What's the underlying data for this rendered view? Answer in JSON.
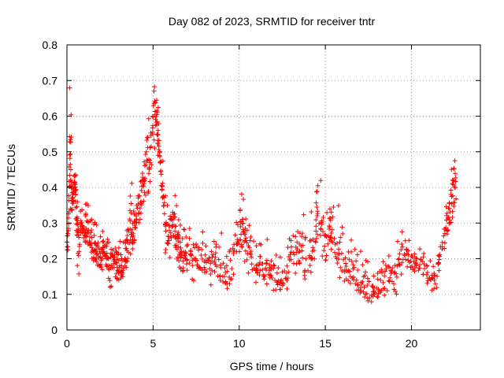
{
  "chart_data": {
    "type": "scatter",
    "title": "Day 082 of 2023, SRMTID for receiver tntr",
    "xlabel": "GPS time / hours",
    "ylabel": "SRMTID / TECUs",
    "xlim": [
      0,
      24
    ],
    "ylim": [
      0,
      0.8
    ],
    "xticks": [
      0,
      5,
      10,
      15,
      20
    ],
    "xtick_labels": [
      "0",
      "5",
      "10",
      "15",
      "20"
    ],
    "yticks": [
      0,
      0.1,
      0.2,
      0.3,
      0.4,
      0.5,
      0.6,
      0.7,
      0.8
    ],
    "ytick_labels": [
      "0",
      "0.1",
      "0.2",
      "0.3",
      "0.4",
      "0.5",
      "0.6",
      "0.7",
      "0.8"
    ],
    "grid": true,
    "marker": "+",
    "color": "#ff0000",
    "series": [
      {
        "name": "SRMTID",
        "x": [
          0.0,
          0.05,
          0.1,
          0.15,
          0.2,
          0.25,
          0.3,
          0.35,
          0.4,
          0.45,
          0.5,
          0.55,
          0.6,
          0.65,
          0.7,
          0.8,
          0.9,
          1.0,
          1.1,
          1.2,
          1.3,
          1.4,
          1.5,
          1.6,
          1.7,
          1.8,
          1.9,
          2.0,
          2.1,
          2.2,
          2.3,
          2.4,
          2.5,
          2.6,
          2.7,
          2.8,
          2.9,
          3.0,
          3.1,
          3.2,
          3.3,
          3.4,
          3.5,
          3.6,
          3.7,
          3.8,
          3.9,
          4.0,
          4.1,
          4.2,
          4.3,
          4.4,
          4.5,
          4.6,
          4.7,
          4.8,
          4.9,
          5.0,
          5.1,
          5.2,
          5.25,
          5.3,
          5.4,
          5.5,
          5.6,
          5.7,
          5.8,
          5.9,
          6.0,
          6.1,
          6.2,
          6.3,
          6.4,
          6.5,
          6.6,
          6.7,
          6.8,
          6.9,
          7.0,
          7.2,
          7.4,
          7.6,
          7.8,
          8.0,
          8.2,
          8.4,
          8.6,
          8.8,
          9.0,
          9.2,
          9.4,
          9.6,
          9.8,
          10.0,
          10.1,
          10.2,
          10.3,
          10.4,
          10.6,
          10.8,
          11.0,
          11.2,
          11.4,
          11.6,
          11.8,
          12.0,
          12.2,
          12.4,
          12.6,
          12.8,
          13.0,
          13.2,
          13.4,
          13.6,
          13.8,
          14.0,
          14.2,
          14.4,
          14.5,
          14.6,
          14.8,
          15.0,
          15.2,
          15.3,
          15.4,
          15.6,
          15.8,
          16.0,
          16.2,
          16.4,
          16.6,
          16.8,
          17.0,
          17.2,
          17.4,
          17.6,
          17.8,
          18.0,
          18.2,
          18.4,
          18.6,
          18.8,
          19.0,
          19.2,
          19.4,
          19.6,
          19.8,
          20.0,
          20.2,
          20.4,
          20.6,
          20.8,
          21.0,
          21.2,
          21.4,
          21.6,
          21.8,
          22.0,
          22.1,
          22.2,
          22.3,
          22.4,
          22.5,
          22.6,
          22.7,
          22.8
        ],
        "y_min": [
          0.2,
          0.18,
          0.22,
          0.25,
          0.28,
          0.3,
          0.3,
          0.32,
          0.35,
          0.38,
          0.3,
          0.2,
          0.15,
          0.14,
          0.13,
          0.2,
          0.22,
          0.2,
          0.18,
          0.2,
          0.18,
          0.16,
          0.14,
          0.14,
          0.13,
          0.12,
          0.12,
          0.14,
          0.16,
          0.15,
          0.12,
          0.1,
          0.08,
          0.1,
          0.12,
          0.14,
          0.13,
          0.1,
          0.09,
          0.12,
          0.14,
          0.15,
          0.16,
          0.15,
          0.14,
          0.2,
          0.22,
          0.26,
          0.26,
          0.28,
          0.27,
          0.29,
          0.3,
          0.32,
          0.35,
          0.38,
          0.42,
          0.45,
          0.46,
          0.5,
          0.48,
          0.44,
          0.4,
          0.35,
          0.3,
          0.2,
          0.18,
          0.16,
          0.18,
          0.2,
          0.22,
          0.2,
          0.18,
          0.16,
          0.15,
          0.14,
          0.12,
          0.14,
          0.15,
          0.14,
          0.12,
          0.13,
          0.14,
          0.12,
          0.1,
          0.1,
          0.11,
          0.1,
          0.09,
          0.08,
          0.09,
          0.1,
          0.12,
          0.18,
          0.2,
          0.2,
          0.18,
          0.16,
          0.12,
          0.1,
          0.1,
          0.1,
          0.1,
          0.11,
          0.1,
          0.09,
          0.08,
          0.07,
          0.08,
          0.09,
          0.1,
          0.12,
          0.14,
          0.1,
          0.08,
          0.09,
          0.1,
          0.12,
          0.22,
          0.18,
          0.16,
          0.15,
          0.2,
          0.22,
          0.18,
          0.15,
          0.12,
          0.1,
          0.09,
          0.08,
          0.08,
          0.07,
          0.06,
          0.05,
          0.05,
          0.04,
          0.04,
          0.04,
          0.05,
          0.06,
          0.06,
          0.08,
          0.08,
          0.1,
          0.14,
          0.15,
          0.14,
          0.12,
          0.12,
          0.13,
          0.12,
          0.1,
          0.09,
          0.08,
          0.08,
          0.18,
          0.2,
          0.22,
          0.22,
          0.24,
          0.26,
          0.27,
          0.28,
          0.26
        ],
        "y_max": [
          0.3,
          0.35,
          0.38,
          0.7,
          0.63,
          0.55,
          0.45,
          0.4,
          0.42,
          0.46,
          0.5,
          0.4,
          0.38,
          0.36,
          0.36,
          0.35,
          0.34,
          0.37,
          0.38,
          0.36,
          0.35,
          0.33,
          0.32,
          0.32,
          0.3,
          0.3,
          0.28,
          0.28,
          0.32,
          0.32,
          0.29,
          0.28,
          0.28,
          0.26,
          0.26,
          0.25,
          0.24,
          0.26,
          0.26,
          0.24,
          0.26,
          0.28,
          0.32,
          0.38,
          0.42,
          0.35,
          0.33,
          0.35,
          0.4,
          0.42,
          0.45,
          0.5,
          0.55,
          0.6,
          0.62,
          0.58,
          0.65,
          0.7,
          0.76,
          0.74,
          0.65,
          0.6,
          0.55,
          0.5,
          0.42,
          0.38,
          0.36,
          0.34,
          0.38,
          0.36,
          0.4,
          0.35,
          0.32,
          0.3,
          0.3,
          0.32,
          0.3,
          0.28,
          0.3,
          0.3,
          0.28,
          0.3,
          0.28,
          0.26,
          0.24,
          0.26,
          0.27,
          0.28,
          0.26,
          0.26,
          0.25,
          0.28,
          0.32,
          0.36,
          0.4,
          0.38,
          0.32,
          0.3,
          0.28,
          0.26,
          0.25,
          0.24,
          0.24,
          0.26,
          0.22,
          0.24,
          0.22,
          0.2,
          0.24,
          0.26,
          0.28,
          0.3,
          0.3,
          0.35,
          0.38,
          0.34,
          0.3,
          0.32,
          0.46,
          0.42,
          0.38,
          0.34,
          0.32,
          0.45,
          0.42,
          0.35,
          0.3,
          0.28,
          0.26,
          0.26,
          0.24,
          0.26,
          0.24,
          0.22,
          0.2,
          0.18,
          0.16,
          0.18,
          0.2,
          0.22,
          0.22,
          0.24,
          0.26,
          0.25,
          0.32,
          0.28,
          0.26,
          0.25,
          0.24,
          0.24,
          0.26,
          0.24,
          0.22,
          0.2,
          0.18,
          0.22,
          0.3,
          0.35,
          0.38,
          0.42,
          0.46,
          0.48,
          0.5,
          0.51,
          0.44
        ],
        "density_per_column": 7
      }
    ]
  }
}
